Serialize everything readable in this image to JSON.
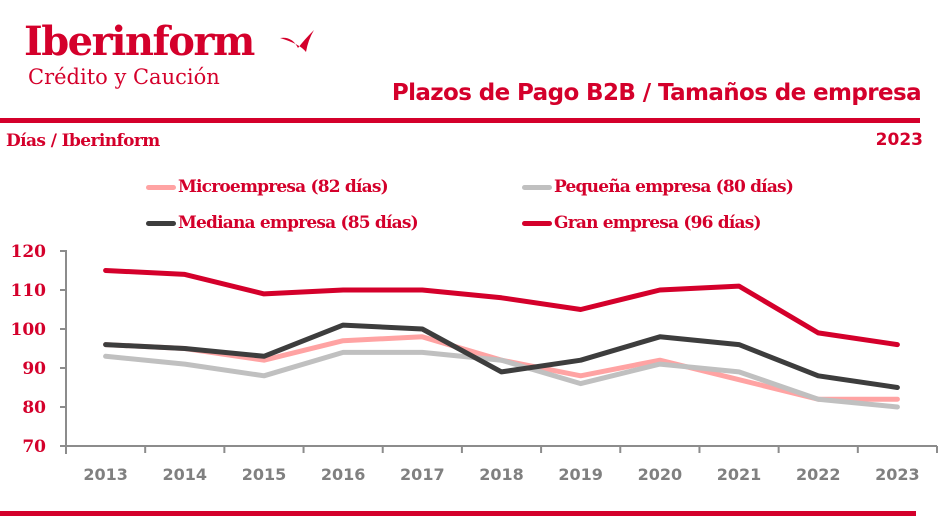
{
  "brand": {
    "name": "Iberinform",
    "subtitle": "Crédito y Caución"
  },
  "header": {
    "title": "Plazos de Pago B2B / Tamaños de empresa",
    "unit_label": "Días / Iberinform",
    "year": "2023"
  },
  "colors": {
    "brand": "#d4002b",
    "axis": "#8c8c8c"
  },
  "chart_data": {
    "type": "line",
    "title": "Plazos de Pago B2B / Tamaños de empresa",
    "xlabel": "",
    "ylabel": "Días",
    "x": [
      "2013",
      "2014",
      "2015",
      "2016",
      "2017",
      "2018",
      "2019",
      "2020",
      "2021",
      "2022",
      "2023"
    ],
    "ylim": [
      70,
      120
    ],
    "yticks": [
      "70",
      "80",
      "90",
      "100",
      "110",
      "120"
    ],
    "grid": false,
    "legend_position": "top",
    "series": [
      {
        "name": "Microempresa (82 días)",
        "color": "#ffa3a3",
        "values": [
          96,
          95,
          92,
          97,
          98,
          92,
          88,
          92,
          87,
          82,
          82
        ]
      },
      {
        "name": "Pequeña empresa (80 días)",
        "color": "#c0c0c0",
        "values": [
          93,
          91,
          88,
          94,
          94,
          92,
          86,
          91,
          89,
          82,
          80
        ]
      },
      {
        "name": "Mediana empresa (85 días)",
        "color": "#3d3d3d",
        "values": [
          96,
          95,
          93,
          101,
          100,
          89,
          92,
          98,
          96,
          88,
          85
        ]
      },
      {
        "name": "Gran empresa (96 días)",
        "color": "#d4002b",
        "values": [
          115,
          114,
          109,
          110,
          110,
          108,
          105,
          110,
          111,
          99,
          96
        ]
      }
    ]
  }
}
